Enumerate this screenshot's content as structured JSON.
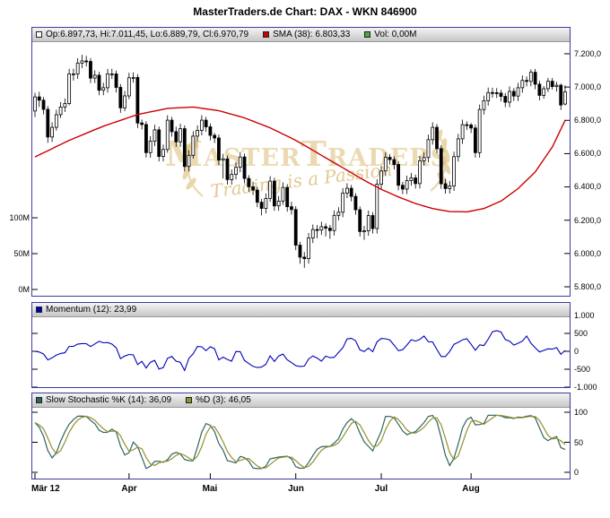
{
  "title": "MasterTraders.de Chart: DAX - WKN 846900",
  "colors": {
    "panel_border": "#3b3b9e",
    "candle_up": "#ffffff",
    "candle_down": "#000000",
    "candle_stroke": "#000000",
    "sma": "#cc0000",
    "momentum": "#0000bb",
    "stoch_k": "#2f6460",
    "stoch_d": "#91912d",
    "watermark_gold": "#d8b665"
  },
  "legends": {
    "main": {
      "ohlc_label": "Op:6.897,73, Hi:7.011,45, Lo:6.889,79, Cl:6.970,79",
      "sma_label": "SMA (38): 6.803,33",
      "vol_label": "Vol: 0,00M"
    },
    "momentum": {
      "label": "Momentum (12): 23,99"
    },
    "stochastic": {
      "k_label": "Slow Stochastic %K (14): 36,09",
      "d_label": "%D (3): 46,05"
    }
  },
  "axes": {
    "price_right": [
      "7.200,0",
      "7.000,0",
      "6.800,0",
      "6.600,0",
      "6.400,0",
      "6.200,0",
      "6.000,0",
      "5.800,0"
    ],
    "volume_left": [
      "100M",
      "50M",
      "0M"
    ],
    "momentum_right": [
      "1.000",
      "500",
      "0",
      "-500",
      "-1.000"
    ],
    "stochastic_right": [
      "100",
      "50",
      "0"
    ],
    "months": [
      "Mär 12",
      "Apr",
      "Mai",
      "Jun",
      "Jul",
      "Aug"
    ]
  },
  "watermark": {
    "text": "MasterTraders",
    "subtext": "Trading is a Passion"
  },
  "chart_data": [
    {
      "type": "candlestick",
      "name": "DAX daily price",
      "legend_ohlc": "Op:6.897,73, Hi:7.011,45, Lo:6.889,79, Cl:6.970,79",
      "ylim": [
        5746,
        7275
      ],
      "y_ticks": [
        7200,
        7000,
        6800,
        6600,
        6400,
        6200,
        6000,
        5800
      ],
      "x_months": [
        "Mär 12",
        "Apr",
        "Mai",
        "Jun",
        "Jul",
        "Aug"
      ],
      "month_start_index": [
        0,
        22,
        41,
        61,
        81,
        102
      ],
      "slots": 125,
      "volume_axis": {
        "labels": [
          "100M",
          "50M",
          "0M"
        ],
        "values": [
          100,
          50,
          0
        ],
        "last_volume_label": "Vol: 0,00M"
      },
      "overlays": [
        {
          "name": "SMA (38)",
          "last_value": "6.803,33",
          "anchors": [
            [
              0,
              6580
            ],
            [
              8,
              6680
            ],
            [
              16,
              6765
            ],
            [
              24,
              6835
            ],
            [
              31,
              6872
            ],
            [
              37,
              6880
            ],
            [
              43,
              6858
            ],
            [
              49,
              6815
            ],
            [
              55,
              6755
            ],
            [
              61,
              6680
            ],
            [
              65,
              6620
            ],
            [
              69,
              6560
            ],
            [
              73,
              6500
            ],
            [
              77,
              6440
            ],
            [
              81,
              6385
            ],
            [
              85,
              6340
            ],
            [
              89,
              6300
            ],
            [
              93,
              6270
            ],
            [
              97,
              6252
            ],
            [
              101,
              6250
            ],
            [
              105,
              6270
            ],
            [
              109,
              6315
            ],
            [
              113,
              6390
            ],
            [
              117,
              6490
            ],
            [
              121,
              6640
            ],
            [
              124,
              6800
            ]
          ]
        }
      ],
      "ohlc": [
        [
          6856,
          6966,
          6820,
          6941
        ],
        [
          6941,
          6971,
          6880,
          6921
        ],
        [
          6921,
          6941,
          6836,
          6866
        ],
        [
          6866,
          6886,
          6665,
          6700
        ],
        [
          6700,
          6788,
          6670,
          6758
        ],
        [
          6758,
          6864,
          6738,
          6834
        ],
        [
          6834,
          6910,
          6814,
          6880
        ],
        [
          6880,
          6931,
          6850,
          6901
        ],
        [
          6901,
          7109,
          6891,
          7079
        ],
        [
          7079,
          7110,
          7039,
          7079
        ],
        [
          7079,
          7174,
          7049,
          7144
        ],
        [
          7144,
          7194,
          7114,
          7157
        ],
        [
          7157,
          7187,
          7124,
          7154
        ],
        [
          7154,
          7174,
          7024,
          7054
        ],
        [
          7054,
          7101,
          7024,
          7071
        ],
        [
          7071,
          7091,
          6951,
          6981
        ],
        [
          6981,
          7026,
          6951,
          6996
        ],
        [
          6996,
          7109,
          6966,
          7079
        ],
        [
          7079,
          7110,
          7049,
          7079
        ],
        [
          7079,
          7099,
          6968,
          6998
        ],
        [
          6998,
          7018,
          6845,
          6875
        ],
        [
          6875,
          6977,
          6855,
          6947
        ],
        [
          6947,
          7086,
          6927,
          7056
        ],
        [
          7056,
          7088,
          7026,
          7058
        ],
        [
          7058,
          7078,
          6754,
          6784
        ],
        [
          6784,
          6805,
          6745,
          6775
        ],
        [
          6775,
          6795,
          6576,
          6606
        ],
        [
          6606,
          6705,
          6576,
          6675
        ],
        [
          6675,
          6773,
          6645,
          6743
        ],
        [
          6743,
          6763,
          6553,
          6583
        ],
        [
          6583,
          6655,
          6553,
          6625
        ],
        [
          6625,
          6831,
          6605,
          6801
        ],
        [
          6801,
          6821,
          6702,
          6732
        ],
        [
          6732,
          6762,
          6641,
          6671
        ],
        [
          6671,
          6780,
          6641,
          6750
        ],
        [
          6750,
          6770,
          6493,
          6523
        ],
        [
          6523,
          6620,
          6493,
          6590
        ],
        [
          6590,
          6735,
          6570,
          6705
        ],
        [
          6705,
          6770,
          6675,
          6740
        ],
        [
          6740,
          6831,
          6710,
          6801
        ],
        [
          6801,
          6821,
          6731,
          6761
        ],
        [
          6761,
          6781,
          6680,
          6710
        ],
        [
          6710,
          6724,
          6664,
          6694
        ],
        [
          6694,
          6714,
          6531,
          6561
        ],
        [
          6561,
          6599,
          6451,
          6569
        ],
        [
          6569,
          6589,
          6414,
          6444
        ],
        [
          6444,
          6505,
          6414,
          6475
        ],
        [
          6475,
          6548,
          6445,
          6518
        ],
        [
          6518,
          6610,
          6488,
          6580
        ],
        [
          6580,
          6600,
          6421,
          6451
        ],
        [
          6451,
          6471,
          6371,
          6401
        ],
        [
          6401,
          6431,
          6351,
          6381
        ],
        [
          6381,
          6401,
          6278,
          6308
        ],
        [
          6308,
          6328,
          6229,
          6271
        ],
        [
          6271,
          6361,
          6241,
          6331
        ],
        [
          6331,
          6465,
          6311,
          6435
        ],
        [
          6435,
          6455,
          6256,
          6286
        ],
        [
          6286,
          6345,
          6256,
          6315
        ],
        [
          6315,
          6427,
          6293,
          6397
        ],
        [
          6397,
          6417,
          6251,
          6281
        ],
        [
          6281,
          6311,
          6234,
          6264
        ],
        [
          6264,
          6284,
          6020,
          6050
        ],
        [
          6050,
          6070,
          5938,
          5978
        ],
        [
          5978,
          6008,
          5914,
          5969
        ],
        [
          5969,
          6123,
          5939,
          6093
        ],
        [
          6093,
          6174,
          6063,
          6144
        ],
        [
          6144,
          6171,
          6091,
          6141
        ],
        [
          6141,
          6191,
          6111,
          6161
        ],
        [
          6161,
          6181,
          6102,
          6152
        ],
        [
          6152,
          6172,
          6088,
          6138
        ],
        [
          6138,
          6259,
          6108,
          6229
        ],
        [
          6229,
          6278,
          6199,
          6248
        ],
        [
          6248,
          6393,
          6218,
          6363
        ],
        [
          6363,
          6422,
          6333,
          6392
        ],
        [
          6392,
          6412,
          6313,
          6343
        ],
        [
          6343,
          6363,
          6233,
          6263
        ],
        [
          6263,
          6283,
          6102,
          6132
        ],
        [
          6132,
          6166,
          6082,
          6136
        ],
        [
          6136,
          6258,
          6106,
          6228
        ],
        [
          6228,
          6248,
          6120,
          6150
        ],
        [
          6150,
          6446,
          6120,
          6416
        ],
        [
          6416,
          6526,
          6386,
          6496
        ],
        [
          6496,
          6608,
          6466,
          6578
        ],
        [
          6578,
          6598,
          6534,
          6564
        ],
        [
          6564,
          6584,
          6505,
          6535
        ],
        [
          6535,
          6555,
          6380,
          6410
        ],
        [
          6410,
          6430,
          6357,
          6387
        ],
        [
          6387,
          6468,
          6357,
          6438
        ],
        [
          6438,
          6484,
          6408,
          6454
        ],
        [
          6454,
          6474,
          6390,
          6420
        ],
        [
          6420,
          6587,
          6390,
          6557
        ],
        [
          6557,
          6607,
          6527,
          6577
        ],
        [
          6577,
          6714,
          6547,
          6684
        ],
        [
          6684,
          6788,
          6654,
          6758
        ],
        [
          6758,
          6778,
          6600,
          6630
        ],
        [
          6630,
          6650,
          6389,
          6419
        ],
        [
          6419,
          6449,
          6360,
          6390
        ],
        [
          6390,
          6436,
          6360,
          6406
        ],
        [
          6406,
          6612,
          6376,
          6582
        ],
        [
          6582,
          6719,
          6552,
          6689
        ],
        [
          6689,
          6804,
          6659,
          6774
        ],
        [
          6774,
          6794,
          6742,
          6772
        ],
        [
          6772,
          6784,
          6724,
          6754
        ],
        [
          6754,
          6774,
          6576,
          6606
        ],
        [
          6606,
          6895,
          6576,
          6865
        ],
        [
          6865,
          6948,
          6835,
          6918
        ],
        [
          6918,
          6997,
          6888,
          6967
        ],
        [
          6967,
          6996,
          6936,
          6966
        ],
        [
          6966,
          6994,
          6934,
          6964
        ],
        [
          6964,
          6984,
          6914,
          6944
        ],
        [
          6944,
          6964,
          6879,
          6909
        ],
        [
          6909,
          7004,
          6879,
          6974
        ],
        [
          6974,
          6994,
          6916,
          6946
        ],
        [
          6946,
          7026,
          6916,
          6996
        ],
        [
          6996,
          7070,
          6966,
          7040
        ],
        [
          7040,
          7064,
          7004,
          7034
        ],
        [
          7034,
          7106,
          7004,
          7089
        ],
        [
          7089,
          7109,
          6987,
          7017
        ],
        [
          7017,
          7037,
          6920,
          6950
        ],
        [
          6950,
          7006,
          6930,
          6990
        ],
        [
          6990,
          7055,
          6970,
          7035
        ],
        [
          7035,
          7055,
          6985,
          7003
        ],
        [
          7003,
          7031,
          6973,
          7011
        ],
        [
          7011,
          7021,
          6862,
          6892
        ],
        [
          6898,
          7011,
          6890,
          6971
        ]
      ]
    },
    {
      "type": "line",
      "name": "Momentum (12)",
      "last_value": "23,99",
      "period": 12,
      "source": "close_minus_close_12_bars_prior",
      "y_ticks": [
        1000,
        500,
        0,
        -500,
        -1000
      ],
      "ylim": [
        -1350,
        1350
      ]
    },
    {
      "type": "line",
      "name": "Slow Stochastic",
      "series": [
        {
          "name": "Slow Stochastic %K (14)",
          "last_value": "36,09"
        },
        {
          "name": "%D (3)",
          "last_value": "46,05"
        }
      ],
      "k_period": 14,
      "k_smoothing": 3,
      "d_period": 3,
      "y_ticks": [
        100,
        50,
        0
      ],
      "ylim": [
        0,
        100
      ]
    }
  ]
}
